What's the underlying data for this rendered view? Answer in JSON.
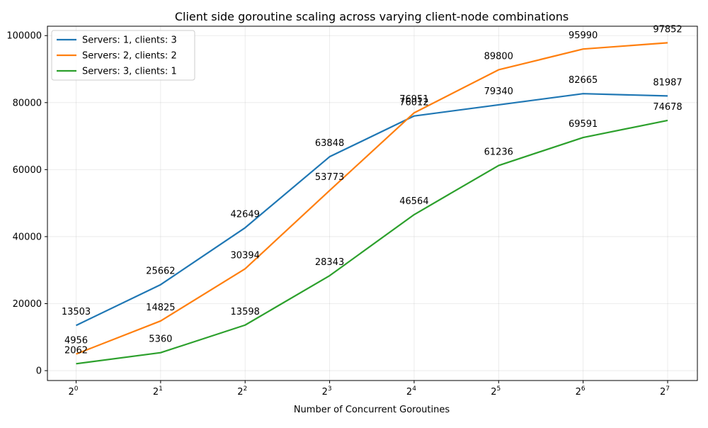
{
  "chart_data": {
    "type": "line",
    "title": "Client side goroutine scaling across varying client-node combinations",
    "xlabel": "Number of Concurrent Goroutines",
    "ylabel": "",
    "x_scale": "log2",
    "x": [
      1,
      2,
      4,
      8,
      16,
      32,
      64,
      128
    ],
    "x_tick_labels": [
      {
        "base": "2",
        "exp": "0"
      },
      {
        "base": "2",
        "exp": "1"
      },
      {
        "base": "2",
        "exp": "2"
      },
      {
        "base": "2",
        "exp": "3"
      },
      {
        "base": "2",
        "exp": "4"
      },
      {
        "base": "2",
        "exp": "5"
      },
      {
        "base": "2",
        "exp": "6"
      },
      {
        "base": "2",
        "exp": "7"
      }
    ],
    "ylim": [
      -2950,
      102800
    ],
    "y_ticks": [
      0,
      20000,
      40000,
      60000,
      80000,
      100000
    ],
    "grid": true,
    "legend_position": "top-left",
    "series": [
      {
        "name": "Servers: 1, clients: 3",
        "color": "#1f77b4",
        "values": [
          13503,
          25662,
          42649,
          63848,
          76012,
          79340,
          82665,
          81987
        ]
      },
      {
        "name": "Servers: 2, clients: 2",
        "color": "#ff7f0e",
        "values": [
          4956,
          14825,
          30394,
          53773,
          76951,
          89800,
          95990,
          97852
        ]
      },
      {
        "name": "Servers: 3, clients: 1",
        "color": "#2ca02c",
        "values": [
          2062,
          5360,
          13598,
          28343,
          46564,
          61236,
          69591,
          74678
        ]
      }
    ]
  }
}
